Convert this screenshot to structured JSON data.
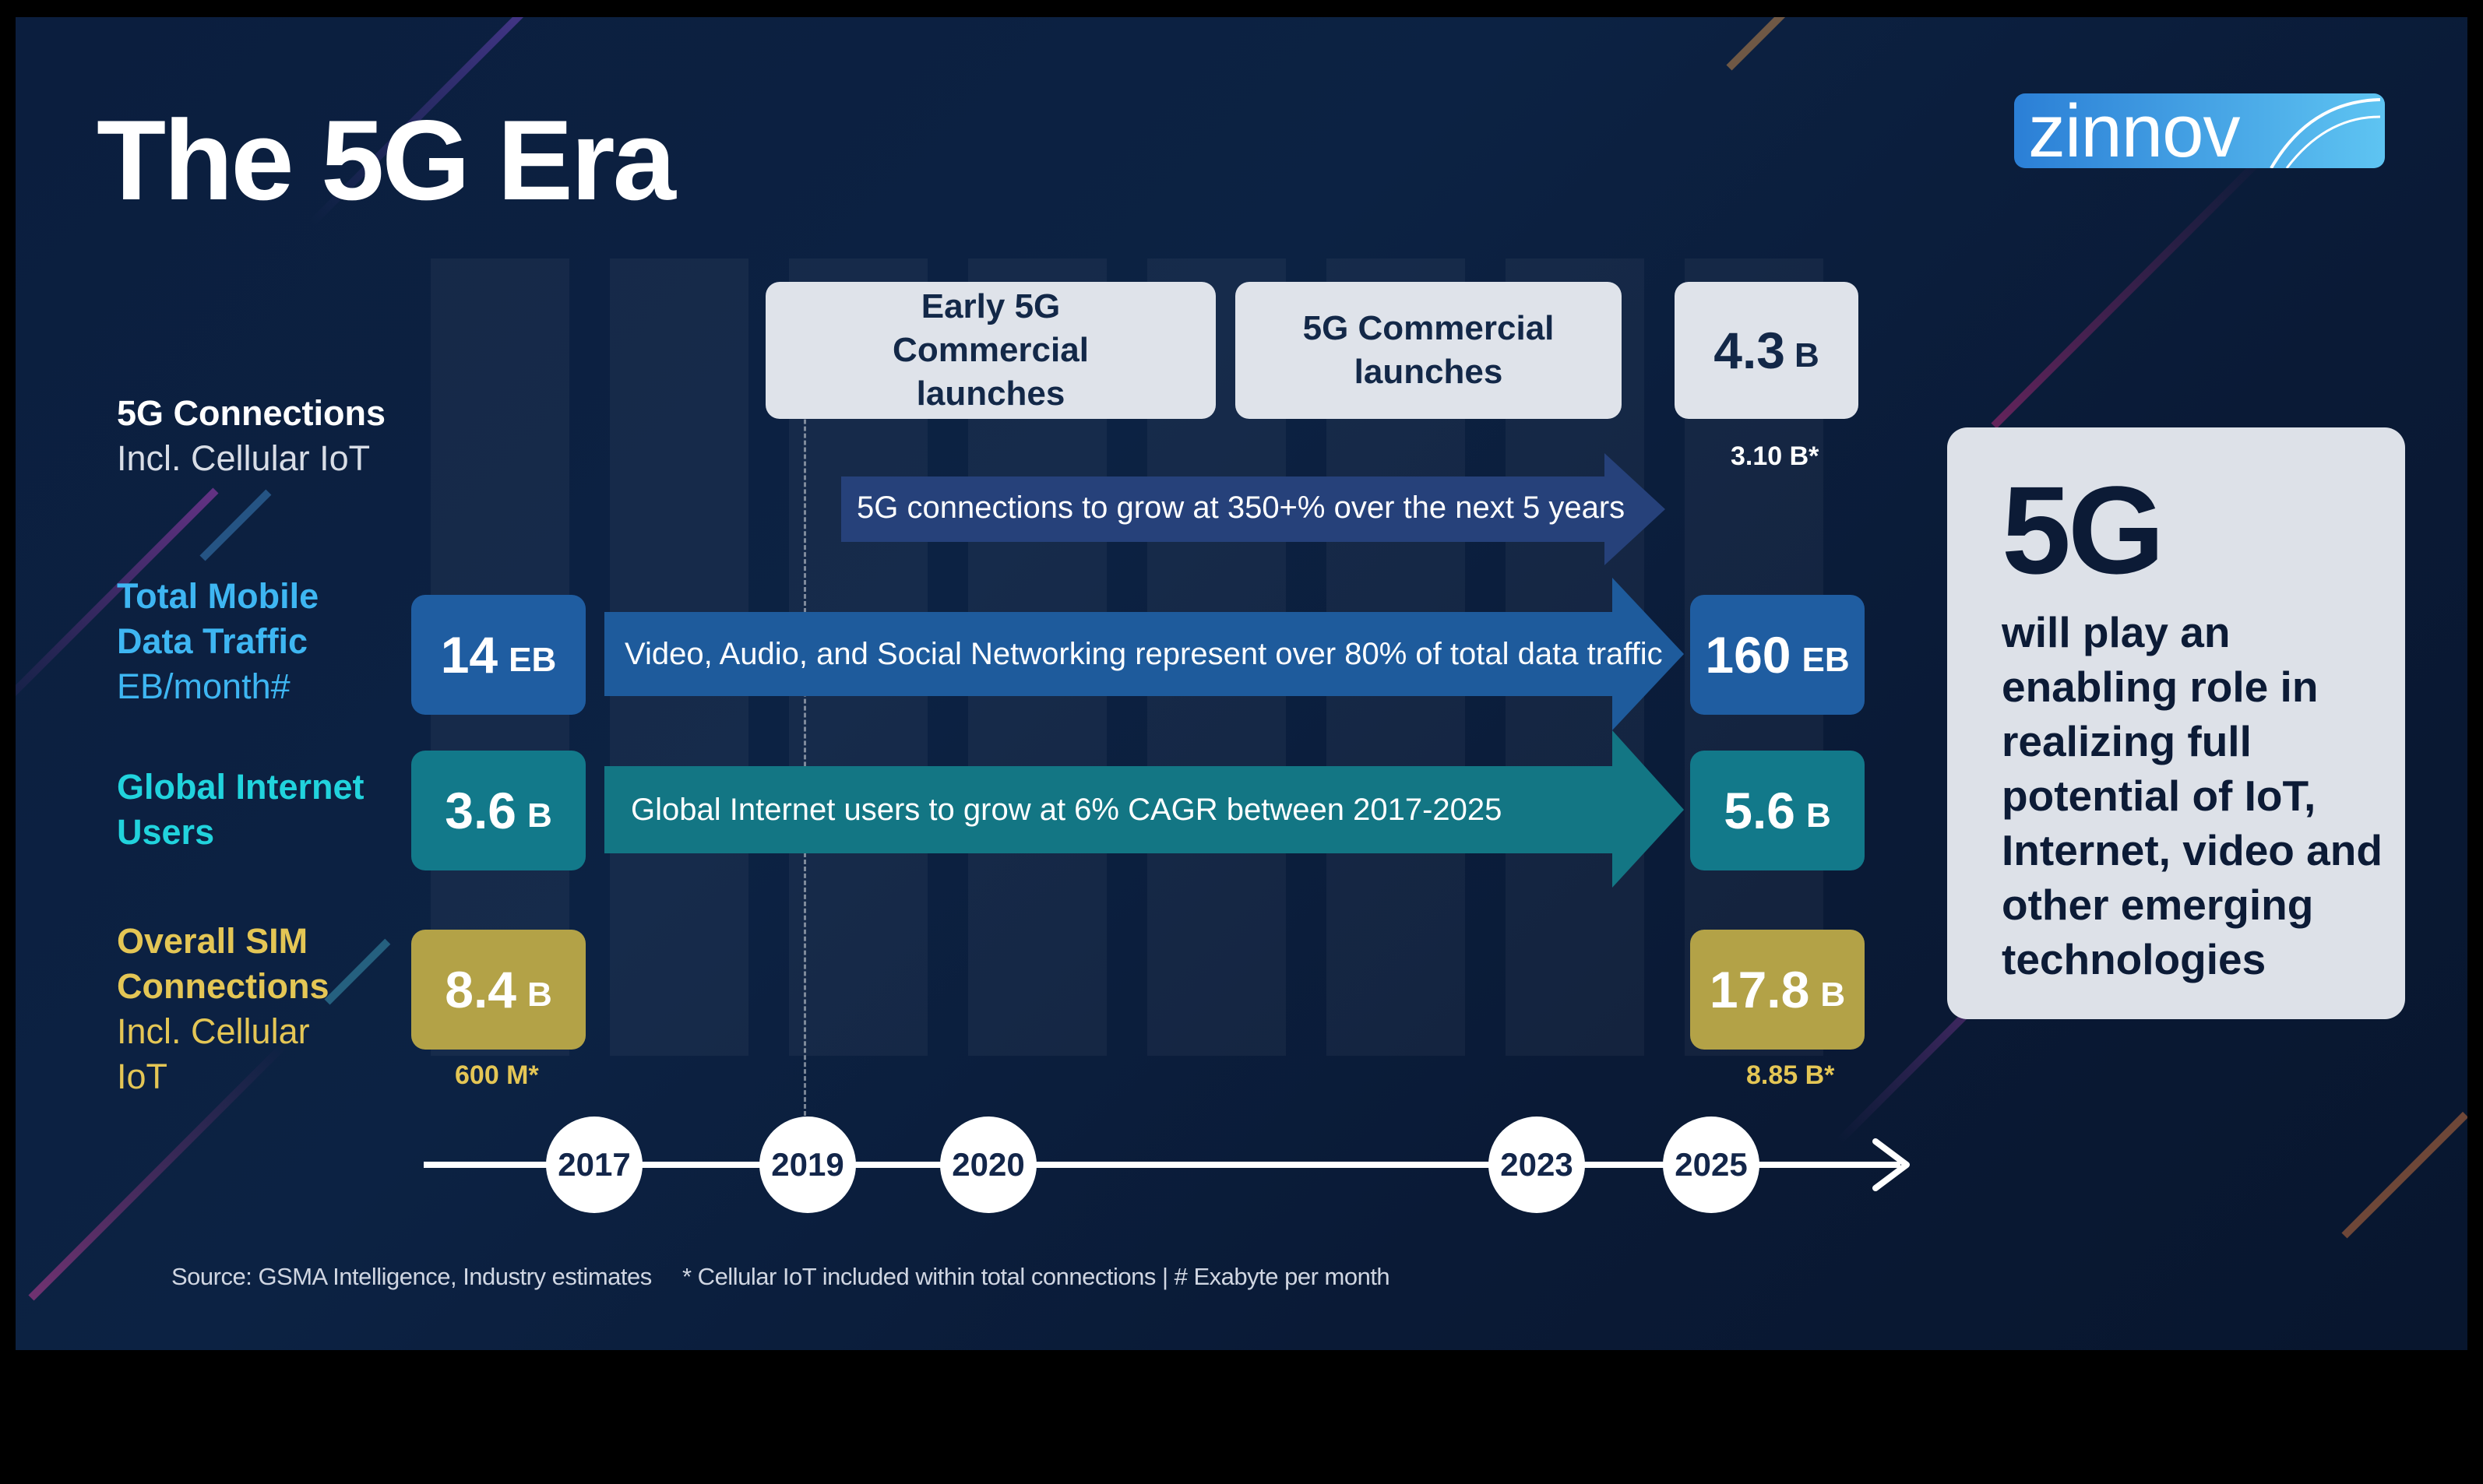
{
  "title": "The 5G Era",
  "logo": {
    "text": "zinnov"
  },
  "row_labels": [
    {
      "main": "5G Connections",
      "sub": "Incl. Cellular IoT",
      "color": "#ffffff",
      "sub_color": "#d8dde6"
    },
    {
      "main": "Total Mobile Data Traffic",
      "sub": "EB/month#",
      "color": "#3eb6f2",
      "sub_color": "#3eb6f2"
    },
    {
      "main": "Global Internet Users",
      "sub": "",
      "color": "#21d3dd",
      "sub_color": "#21d3dd"
    },
    {
      "main": "Overall SIM Connections",
      "sub": "Incl. Cellular IoT",
      "color": "#e4c655",
      "sub_color": "#e4c655"
    }
  ],
  "callouts": {
    "early_5g": "Early 5G Commercial launches",
    "5g_launch": "5G Commercial launches",
    "connections_2025": {
      "value": "4.3",
      "unit": "B"
    }
  },
  "notes": {
    "connections_2025": "3.10 B*",
    "sim_2017": "600 M*",
    "sim_2025": "8.85 B*"
  },
  "arrows": {
    "connections": "5G connections to grow at 350+% over the next 5 years",
    "traffic": "Video, Audio, and Social Networking represent over 80% of total data traffic",
    "internet": "Global Internet users to grow at 6% CAGR between 2017-2025"
  },
  "values": {
    "traffic_2017": {
      "value": "14",
      "unit": "EB"
    },
    "traffic_2025": {
      "value": "160",
      "unit": "EB"
    },
    "internet_2017": {
      "value": "3.6",
      "unit": "B"
    },
    "internet_2025": {
      "value": "5.6",
      "unit": "B"
    },
    "sim_2017": {
      "value": "8.4",
      "unit": "B"
    },
    "sim_2025": {
      "value": "17.8",
      "unit": "B"
    }
  },
  "timeline": {
    "years": [
      "2017",
      "2019",
      "2020",
      "2023",
      "2025"
    ]
  },
  "sidebar": {
    "headline": "5G",
    "text": "will play an enabling role in realizing full potential of IoT, Internet, video and other emerging technologies"
  },
  "footer": {
    "source": "Source: GSMA Intelligence, Industry estimates",
    "footnote": "* Cellular IoT included within total connections | # Exabyte per month"
  },
  "colors": {
    "background": "#0b1e3e",
    "traffic": "#1f5da1",
    "internet": "#12798a",
    "sim": "#b3a247",
    "connections_arrow": "#26417a",
    "traffic_arrow": "#1e5b9c",
    "internet_arrow": "#137684"
  }
}
